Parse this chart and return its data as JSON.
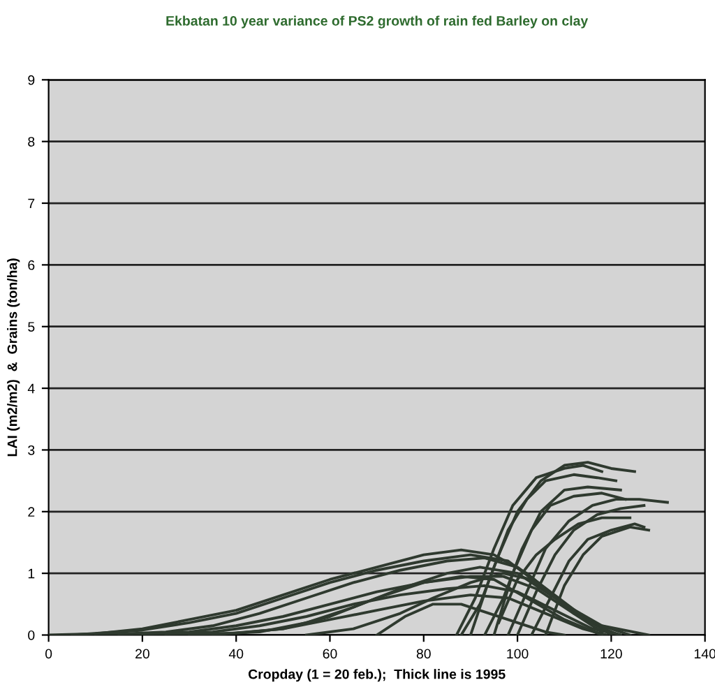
{
  "chart_data": {
    "type": "line",
    "title": "Ekbatan 10 year variance of PS2 growth of rain fed Barley on clay",
    "xlabel": "Cropday (1 = 20 feb.);  Thick line is 1995",
    "ylabel": "LAI (m2/m2)  &  Grains (ton/ha)",
    "xlim": [
      0,
      140
    ],
    "ylim": [
      0,
      9
    ],
    "xticks": [
      0,
      20,
      40,
      60,
      80,
      100,
      120,
      140
    ],
    "yticks": [
      0,
      1,
      2,
      3,
      4,
      5,
      6,
      7,
      8,
      9
    ],
    "grid": "y",
    "legend": false,
    "marker": "none",
    "line_style": "solid",
    "series": [
      {
        "color": "#2f3a2f",
        "x": [
          0,
          10,
          20,
          30,
          40,
          50,
          60,
          70,
          80,
          88,
          95,
          102,
          110,
          118,
          122
        ],
        "values": [
          0,
          0.02,
          0.1,
          0.25,
          0.4,
          0.65,
          0.9,
          1.1,
          1.3,
          1.38,
          1.3,
          1.0,
          0.5,
          0.1,
          0
        ]
      },
      {
        "color": "#2f3a2f",
        "x": [
          5,
          20,
          30,
          40,
          50,
          60,
          70,
          80,
          90,
          98,
          105,
          112,
          118
        ],
        "values": [
          0,
          0.08,
          0.2,
          0.35,
          0.6,
          0.85,
          1.05,
          1.2,
          1.3,
          1.2,
          0.8,
          0.35,
          0.05
        ]
      },
      {
        "color": "#2f3a2f",
        "x": [
          10,
          25,
          35,
          45,
          55,
          65,
          75,
          85,
          93,
          100,
          107,
          114,
          120
        ],
        "values": [
          0,
          0.05,
          0.15,
          0.35,
          0.6,
          0.85,
          1.05,
          1.2,
          1.25,
          1.1,
          0.7,
          0.3,
          0
        ]
      },
      {
        "color": "#2f3a2f",
        "x": [
          15,
          30,
          40,
          50,
          60,
          70,
          80,
          90,
          97,
          104,
          112,
          120
        ],
        "values": [
          0,
          0.05,
          0.15,
          0.3,
          0.5,
          0.7,
          0.85,
          0.95,
          0.95,
          0.75,
          0.35,
          0.05
        ]
      },
      {
        "color": "#2f3a2f",
        "x": [
          20,
          35,
          45,
          55,
          65,
          75,
          85,
          93,
          100,
          108,
          116,
          122
        ],
        "values": [
          0,
          0.05,
          0.15,
          0.3,
          0.5,
          0.65,
          0.75,
          0.8,
          0.7,
          0.4,
          0.1,
          0
        ]
      },
      {
        "color": "#2f3a2f",
        "x": [
          25,
          40,
          50,
          60,
          70,
          80,
          90,
          98,
          106,
          114,
          119
        ],
        "values": [
          0,
          0.03,
          0.1,
          0.25,
          0.4,
          0.55,
          0.65,
          0.6,
          0.35,
          0.1,
          0
        ]
      },
      {
        "color": "#2f3a2f",
        "x": [
          30,
          45,
          55,
          65,
          75,
          85,
          92,
          100,
          108,
          116,
          124
        ],
        "values": [
          0,
          0.05,
          0.2,
          0.45,
          0.75,
          1.0,
          1.1,
          1.0,
          0.6,
          0.2,
          0
        ]
      },
      {
        "color": "#2f3a2f",
        "x": [
          55,
          65,
          75,
          82,
          90,
          97,
          103,
          110,
          118,
          128
        ],
        "values": [
          0,
          0.1,
          0.35,
          0.6,
          0.85,
          1.0,
          0.9,
          0.5,
          0.15,
          0
        ]
      },
      {
        "color": "#2f3a2f",
        "x": [
          35,
          50,
          60,
          70,
          80,
          88,
          95,
          102,
          110,
          118
        ],
        "values": [
          0,
          0.1,
          0.3,
          0.6,
          0.85,
          0.95,
          0.9,
          0.6,
          0.25,
          0
        ]
      },
      {
        "color": "#2f3a2f",
        "x": [
          70,
          76,
          82,
          88,
          94,
          100,
          106,
          110
        ],
        "values": [
          0,
          0.3,
          0.5,
          0.5,
          0.35,
          0.2,
          0.05,
          0
        ]
      },
      {
        "color": "#2f3a2f",
        "x": [
          88,
          92,
          96,
          100,
          105,
          110,
          115,
          120,
          125
        ],
        "values": [
          0,
          0.5,
          1.3,
          2.0,
          2.5,
          2.75,
          2.8,
          2.7,
          2.65
        ]
      },
      {
        "color": "#2f3a2f",
        "x": [
          87,
          91,
          95,
          99,
          104,
          110,
          114,
          118
        ],
        "values": [
          0,
          0.6,
          1.4,
          2.1,
          2.55,
          2.7,
          2.75,
          2.65
        ]
      },
      {
        "color": "#2f3a2f",
        "x": [
          93,
          97,
          101,
          105,
          110,
          115,
          122
        ],
        "values": [
          0,
          0.6,
          1.4,
          2.0,
          2.35,
          2.4,
          2.35
        ]
      },
      {
        "color": "#2f3a2f",
        "x": [
          100,
          104,
          108,
          112,
          117,
          122,
          127
        ],
        "values": [
          0,
          0.7,
          1.3,
          1.7,
          1.95,
          2.05,
          2.1
        ]
      },
      {
        "color": "#2f3a2f",
        "x": [
          98,
          102,
          106,
          111,
          116,
          121,
          126,
          132
        ],
        "values": [
          0,
          0.7,
          1.4,
          1.85,
          2.1,
          2.2,
          2.2,
          2.15
        ]
      },
      {
        "color": "#2f3a2f",
        "x": [
          103,
          107,
          111,
          115,
          120,
          125,
          127
        ],
        "values": [
          0,
          0.6,
          1.2,
          1.55,
          1.7,
          1.8,
          1.75
        ]
      },
      {
        "color": "#2f3a2f",
        "x": [
          96,
          100,
          104,
          108,
          113,
          118,
          124
        ],
        "values": [
          0.2,
          0.9,
          1.3,
          1.55,
          1.8,
          1.9,
          1.9
        ]
      },
      {
        "color": "#2f3a2f",
        "x": [
          90,
          94,
          98,
          102,
          106,
          112,
          117,
          121
        ],
        "values": [
          0,
          0.9,
          1.7,
          2.2,
          2.5,
          2.6,
          2.55,
          2.5
        ]
      },
      {
        "color": "#2f3a2f",
        "x": [
          106,
          110,
          114,
          118,
          124,
          128
        ],
        "values": [
          0,
          0.8,
          1.3,
          1.6,
          1.75,
          1.7
        ]
      },
      {
        "color": "#2f3a2f",
        "x": [
          95,
          99,
          103,
          107,
          112,
          118,
          123
        ],
        "values": [
          0,
          1.0,
          1.7,
          2.1,
          2.25,
          2.3,
          2.2
        ]
      }
    ]
  }
}
